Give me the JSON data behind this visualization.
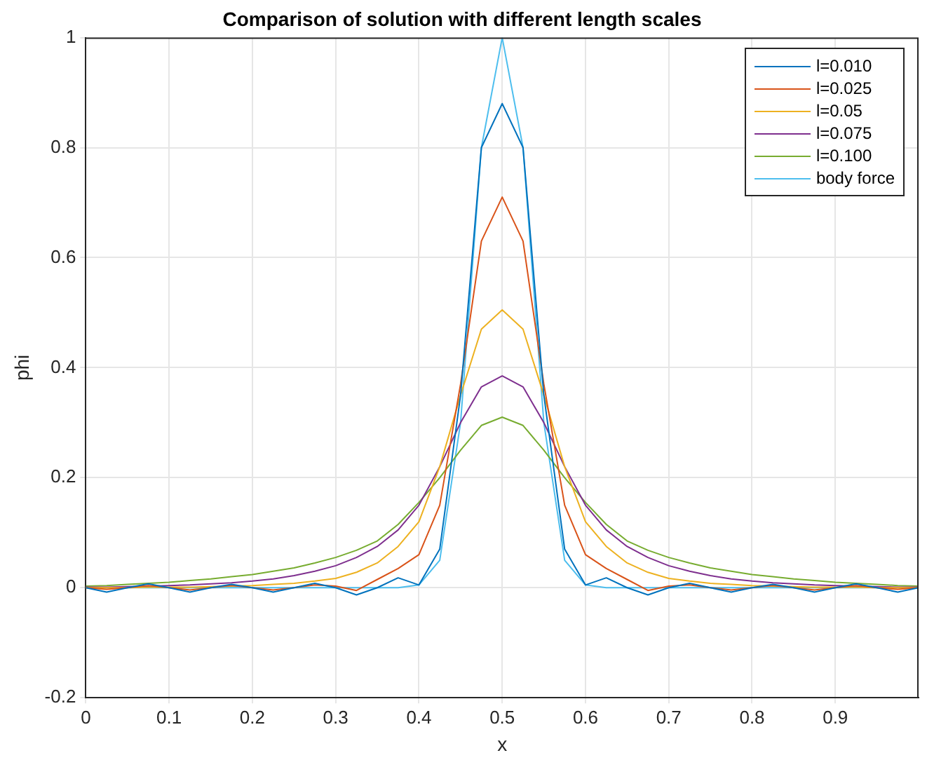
{
  "chart_data": {
    "type": "line",
    "title": "Comparison of solution with different length scales",
    "xlabel": "x",
    "ylabel": "phi",
    "x": [
      0,
      0.025,
      0.05,
      0.075,
      0.1,
      0.125,
      0.15,
      0.175,
      0.2,
      0.225,
      0.25,
      0.275,
      0.3,
      0.325,
      0.35,
      0.375,
      0.4,
      0.425,
      0.45,
      0.475,
      0.5,
      0.525,
      0.55,
      0.575,
      0.6,
      0.625,
      0.65,
      0.675,
      0.7,
      0.725,
      0.75,
      0.775,
      0.8,
      0.825,
      0.85,
      0.875,
      0.9,
      0.925,
      0.95,
      0.975,
      1
    ],
    "series": [
      {
        "name": "l=0.010",
        "color": "#0072bd",
        "values": [
          0,
          -0.008,
          0,
          0.007,
          0,
          -0.008,
          0,
          0.006,
          0,
          -0.008,
          0,
          0.008,
          0,
          -0.013,
          0,
          0.018,
          0.005,
          0.07,
          0.35,
          0.8,
          0.88,
          0.8,
          0.35,
          0.07,
          0.005,
          0.018,
          0,
          -0.013,
          0,
          0.008,
          0,
          -0.008,
          0,
          0.006,
          0,
          -0.008,
          0,
          0.007,
          0,
          -0.008,
          0
        ]
      },
      {
        "name": "l=0.025",
        "color": "#d95319",
        "values": [
          0,
          -0.003,
          0,
          0.004,
          0,
          -0.004,
          0,
          0.004,
          0,
          -0.004,
          0,
          0.005,
          0.003,
          -0.005,
          0.015,
          0.035,
          0.06,
          0.15,
          0.37,
          0.63,
          0.71,
          0.63,
          0.37,
          0.15,
          0.06,
          0.035,
          0.015,
          -0.005,
          0.003,
          0.005,
          0,
          -0.004,
          0,
          0.004,
          0,
          -0.004,
          0,
          0.004,
          0,
          -0.003,
          0
        ]
      },
      {
        "name": "l=0.05",
        "color": "#edb120",
        "values": [
          0,
          0,
          0,
          0.001,
          0.001,
          0.001,
          0.002,
          0.003,
          0.004,
          0.006,
          0.008,
          0.012,
          0.017,
          0.028,
          0.045,
          0.075,
          0.12,
          0.22,
          0.35,
          0.47,
          0.505,
          0.47,
          0.35,
          0.22,
          0.12,
          0.075,
          0.045,
          0.028,
          0.017,
          0.012,
          0.008,
          0.006,
          0.004,
          0.003,
          0.002,
          0.001,
          0.001,
          0.001,
          0,
          0,
          0
        ]
      },
      {
        "name": "l=0.075",
        "color": "#7e2f8e",
        "values": [
          0.001,
          0.001,
          0.002,
          0.003,
          0.004,
          0.005,
          0.007,
          0.009,
          0.012,
          0.016,
          0.022,
          0.03,
          0.04,
          0.055,
          0.075,
          0.105,
          0.15,
          0.22,
          0.3,
          0.365,
          0.385,
          0.365,
          0.3,
          0.22,
          0.15,
          0.105,
          0.075,
          0.055,
          0.04,
          0.03,
          0.022,
          0.016,
          0.012,
          0.009,
          0.007,
          0.005,
          0.004,
          0.003,
          0.002,
          0.001,
          0.001
        ]
      },
      {
        "name": "l=0.100",
        "color": "#77ac30",
        "values": [
          0.003,
          0.004,
          0.006,
          0.008,
          0.01,
          0.013,
          0.016,
          0.02,
          0.024,
          0.03,
          0.036,
          0.045,
          0.055,
          0.068,
          0.085,
          0.115,
          0.155,
          0.2,
          0.25,
          0.295,
          0.31,
          0.295,
          0.25,
          0.2,
          0.155,
          0.115,
          0.085,
          0.068,
          0.055,
          0.045,
          0.036,
          0.03,
          0.024,
          0.02,
          0.016,
          0.013,
          0.01,
          0.008,
          0.006,
          0.004,
          0.003
        ]
      },
      {
        "name": "body force",
        "color": "#4dbeee",
        "values": [
          0,
          0,
          0,
          0,
          0,
          0,
          0,
          0,
          0,
          0,
          0,
          0,
          0,
          0,
          0,
          0,
          0.005,
          0.05,
          0.3,
          0.8,
          1.0,
          0.8,
          0.3,
          0.05,
          0.005,
          0,
          0,
          0,
          0,
          0,
          0,
          0,
          0,
          0,
          0,
          0,
          0,
          0,
          0,
          0,
          0
        ]
      }
    ],
    "xlim": [
      0,
      1
    ],
    "xticks": [
      0,
      0.1,
      0.2,
      0.3,
      0.4,
      0.5,
      0.6,
      0.7,
      0.8,
      0.9
    ],
    "ylim": [
      -0.2,
      1
    ],
    "yticks": [
      -0.2,
      0,
      0.2,
      0.4,
      0.6,
      0.8,
      1
    ],
    "grid": true,
    "legend": "top right",
    "marker": "none",
    "line_style": "solid"
  }
}
